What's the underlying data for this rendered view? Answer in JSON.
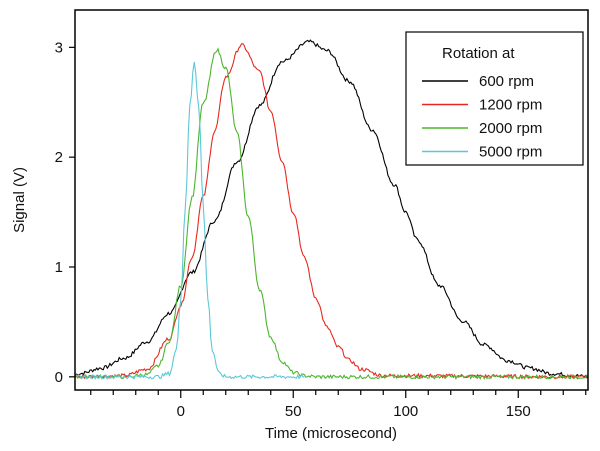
{
  "chart_data": {
    "type": "line",
    "title": "",
    "xlabel": "Time (microsecond)",
    "ylabel": "Signal (V)",
    "xlim": [
      -47,
      181
    ],
    "ylim": [
      -0.12,
      3.34
    ],
    "x_ticks": [
      0,
      50,
      100,
      150
    ],
    "x_minor_step": 10,
    "y_ticks": [
      0,
      1,
      2,
      3
    ],
    "grid": false,
    "legend": {
      "title": "Rotation at",
      "placement": "top-right"
    },
    "series": [
      {
        "name": "600 rpm",
        "color": "#000000",
        "x": [
          -47,
          -45,
          -35,
          -25,
          -15,
          -5,
          5,
          15,
          25,
          35,
          45,
          57,
          65,
          75,
          85,
          95,
          100,
          105,
          115,
          125,
          135,
          145,
          155,
          165,
          175,
          181
        ],
        "y": [
          0.02,
          0.03,
          0.08,
          0.17,
          0.32,
          0.58,
          0.95,
          1.42,
          1.96,
          2.47,
          2.87,
          3.05,
          2.97,
          2.69,
          2.25,
          1.75,
          1.5,
          1.25,
          0.83,
          0.51,
          0.29,
          0.15,
          0.08,
          0.03,
          0.01,
          0.0
        ]
      },
      {
        "name": "1200 rpm",
        "color": "#e8281e",
        "x": [
          -47,
          -25,
          -15,
          -5,
          0,
          5,
          10,
          15,
          20,
          27,
          35,
          40,
          45,
          50,
          55,
          60,
          65,
          70,
          75,
          80,
          90,
          181
        ],
        "y": [
          0.0,
          0.01,
          0.07,
          0.35,
          0.65,
          1.09,
          1.64,
          2.23,
          2.73,
          3.02,
          2.78,
          2.42,
          1.97,
          1.5,
          1.08,
          0.72,
          0.45,
          0.27,
          0.15,
          0.07,
          0.01,
          0.0
        ]
      },
      {
        "name": "2000 rpm",
        "color": "#4cb52f",
        "x": [
          -47,
          -25,
          -15,
          -10,
          -5,
          0,
          5,
          10,
          16,
          20,
          25,
          30,
          35,
          40,
          45,
          50,
          55,
          60,
          181
        ],
        "y": [
          0.0,
          0.0,
          0.02,
          0.1,
          0.33,
          0.83,
          1.63,
          2.49,
          2.98,
          2.81,
          2.22,
          1.46,
          0.8,
          0.36,
          0.14,
          0.04,
          0.01,
          0.0,
          0.0
        ]
      },
      {
        "name": "5000 rpm",
        "color": "#5bc8d8",
        "x": [
          -47,
          -10,
          -5,
          -2,
          0,
          2,
          4,
          6,
          8,
          10,
          12,
          14,
          17,
          20,
          55
        ],
        "y": [
          0.0,
          0.0,
          0.03,
          0.24,
          0.72,
          1.55,
          2.46,
          2.87,
          2.46,
          1.55,
          0.72,
          0.24,
          0.03,
          0.0,
          0.0
        ]
      }
    ]
  }
}
